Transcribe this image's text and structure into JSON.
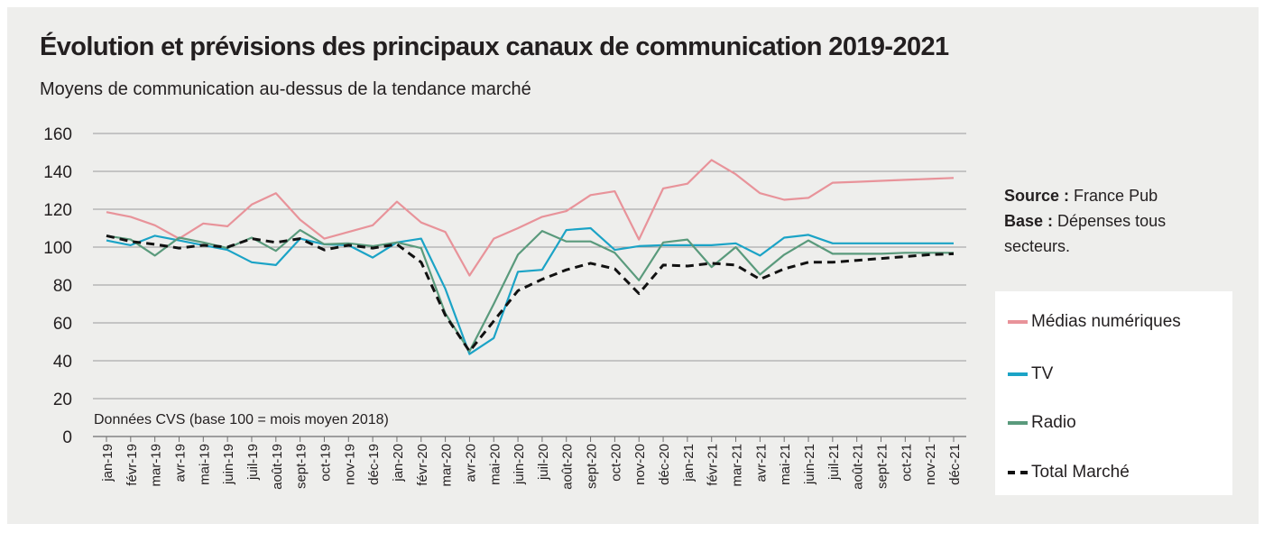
{
  "colors": {
    "background": "#eeeeec",
    "grid": "#9b9b9b",
    "digital": "#e8939a",
    "tv": "#1ba3c6",
    "radio": "#5a9a7c",
    "total": "#111111"
  },
  "header": {
    "title": "Évolution et prévisions des principaux canaux de communication 2019-2021",
    "subtitle": "Moyens de communication au-dessus de la tendance marché"
  },
  "side_note": {
    "source_label": "Source :",
    "source_value": "France Pub",
    "base_label": "Base :",
    "base_value_line1": "Dépenses tous",
    "base_value_line2": "secteurs."
  },
  "chart_data": {
    "type": "line",
    "annotation": "Données CVS (base 100 = mois moyen 2018)",
    "ylim": [
      0,
      160
    ],
    "yticks": [
      "0",
      "20",
      "40",
      "60",
      "80",
      "100",
      "120",
      "140",
      "160"
    ],
    "grid": true,
    "legend_position": "right",
    "categories": [
      "jan-19",
      "févr-19",
      "mar-19",
      "avr-19",
      "mai-19",
      "juin-19",
      "juil-19",
      "août-19",
      "sept-19",
      "oct-19",
      "nov-19",
      "déc-19",
      "jan-20",
      "févr-20",
      "mar-20",
      "avr-20",
      "mai-20",
      "juin-20",
      "juil-20",
      "août-20",
      "sept-20",
      "oct-20",
      "nov-20",
      "déc-20",
      "jan-21",
      "févr-21",
      "mar-21",
      "avr-21",
      "mai-21",
      "juin-21",
      "juil-21",
      "août-21",
      "sept-21",
      "oct-21",
      "nov-21",
      "déc-21"
    ],
    "series": [
      {
        "name": "Médias numériques",
        "color": "#e8939a",
        "style": "solid",
        "values": [
          118.5,
          116,
          111.5,
          104.5,
          112.5,
          111,
          122.5,
          128.5,
          114.5,
          104.5,
          108,
          111.5,
          124,
          113,
          108,
          85,
          104.5,
          110,
          116,
          119,
          127.5,
          129.5,
          104,
          131,
          133.5,
          146,
          138.5,
          128.5,
          125,
          126,
          134,
          134.5,
          135,
          135.5,
          136,
          136.5
        ]
      },
      {
        "name": "TV",
        "color": "#1ba3c6",
        "style": "solid",
        "values": [
          103.5,
          101,
          106,
          103.5,
          101,
          98.5,
          92,
          90.5,
          104.5,
          101.5,
          101,
          94.5,
          102.5,
          104.5,
          78,
          43.5,
          52,
          87,
          88,
          109,
          110,
          98.5,
          100.5,
          101,
          101,
          101,
          102,
          95.5,
          105,
          106.5,
          102,
          102,
          102,
          102,
          102,
          102
        ]
      },
      {
        "name": "Radio",
        "color": "#5a9a7c",
        "style": "solid",
        "values": [
          106,
          104,
          95.5,
          105,
          102.5,
          99.5,
          105,
          98,
          109,
          101.5,
          102,
          100.5,
          102.5,
          99.5,
          65,
          45,
          70,
          96,
          108.5,
          103,
          103,
          97,
          82.5,
          102.5,
          104,
          89.5,
          100,
          85.5,
          96,
          103.5,
          96.5,
          96.5,
          96.5,
          97,
          97,
          97
        ]
      },
      {
        "name": "Total Marché",
        "color": "#111111",
        "style": "dashed",
        "values": [
          106,
          103,
          101.5,
          99.5,
          101,
          100,
          104.5,
          102.5,
          104.5,
          98.5,
          101,
          99.5,
          101.5,
          92,
          64,
          45,
          61,
          77,
          83,
          88,
          91.5,
          88.5,
          75.5,
          90.5,
          90,
          91.5,
          90.5,
          83,
          88.5,
          92,
          92,
          93,
          94,
          95,
          96,
          96.5
        ]
      }
    ]
  }
}
